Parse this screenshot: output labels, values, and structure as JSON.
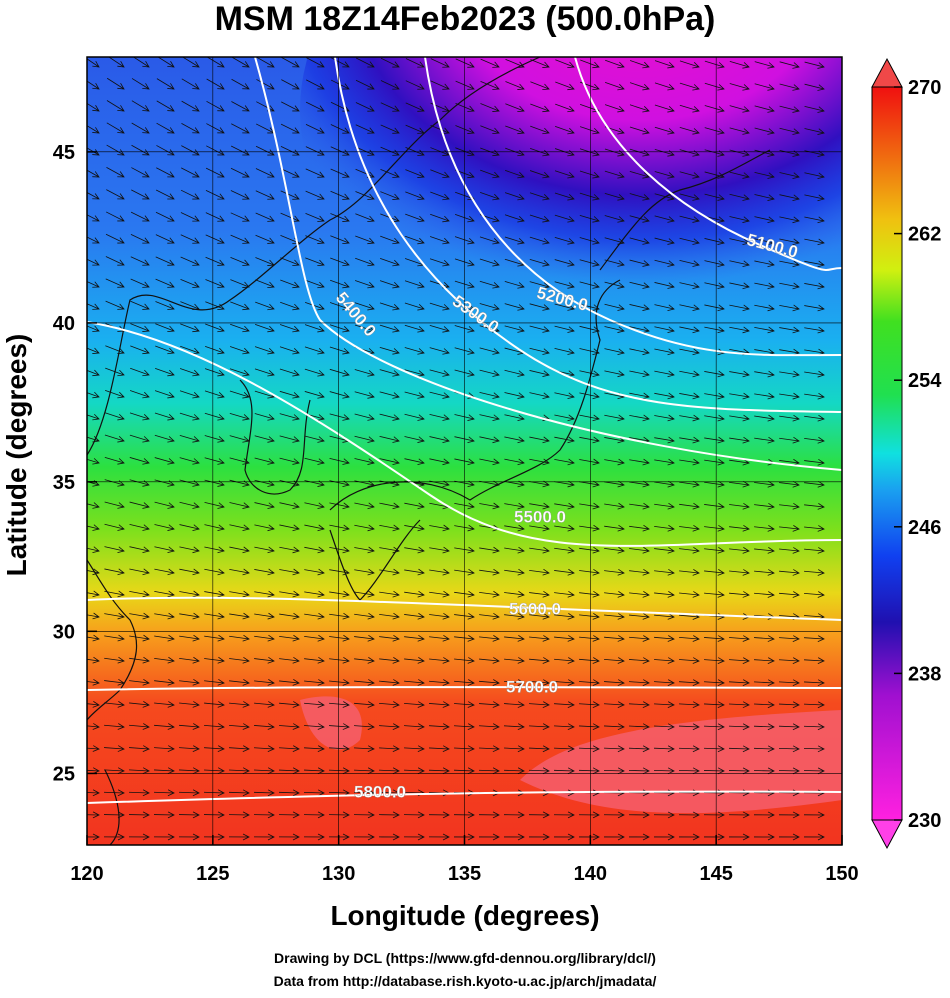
{
  "header": {
    "title": "MSM 18Z14Feb2023 (500.0hPa)"
  },
  "map": {
    "xlabel": "Longitude (degrees)",
    "ylabel": "Latitude  (degrees)",
    "xlim": [
      120,
      150
    ],
    "ylim": [
      22.4,
      47.6
    ],
    "xticks": [
      120,
      125,
      130,
      135,
      140,
      145,
      150
    ],
    "yticks": [
      25,
      30,
      35,
      40,
      45
    ],
    "colorbar": {
      "lim": [
        230,
        270
      ],
      "ticks": [
        230,
        238,
        246,
        254,
        262,
        270
      ]
    },
    "contour_labels": [
      "5100.0",
      "5200.0",
      "5300.0",
      "5400.0",
      "5500.0",
      "5600.0",
      "5700.0",
      "5800.0"
    ]
  },
  "footer": {
    "lines": [
      "Drawing by DCL (https://www.gfd-dennou.org/library/dcl/)",
      "Data from http://database.rish.kyoto-u.ac.jp/arch/jmadata/"
    ]
  }
}
